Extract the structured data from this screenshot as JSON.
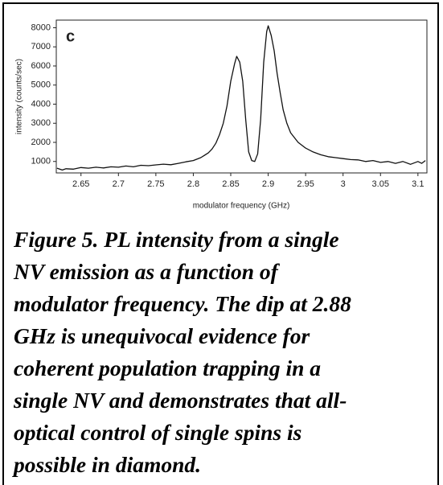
{
  "chart_data": {
    "type": "line",
    "panel_label": "c",
    "x_label": "modulator frequency (GHz)",
    "y_label": "intensity (counts/sec)",
    "xlim": [
      2.617,
      3.112
    ],
    "ylim": [
      400,
      8400
    ],
    "xticks": [
      2.65,
      2.7,
      2.75,
      2.8,
      2.85,
      2.9,
      2.95,
      3,
      3.05,
      3.1
    ],
    "yticks": [
      1000,
      2000,
      3000,
      4000,
      5000,
      6000,
      7000,
      8000
    ],
    "series": [
      {
        "color": "#111111",
        "x": [
          2.618,
          2.625,
          2.63,
          2.64,
          2.65,
          2.66,
          2.67,
          2.68,
          2.69,
          2.7,
          2.71,
          2.72,
          2.73,
          2.74,
          2.75,
          2.76,
          2.77,
          2.78,
          2.79,
          2.8,
          2.81,
          2.82,
          2.825,
          2.83,
          2.835,
          2.84,
          2.845,
          2.85,
          2.855,
          2.858,
          2.862,
          2.866,
          2.87,
          2.874,
          2.878,
          2.882,
          2.886,
          2.89,
          2.894,
          2.898,
          2.9,
          2.904,
          2.908,
          2.912,
          2.916,
          2.92,
          2.925,
          2.93,
          2.94,
          2.95,
          2.96,
          2.97,
          2.98,
          2.99,
          3.0,
          3.01,
          3.02,
          3.03,
          3.04,
          3.05,
          3.06,
          3.07,
          3.08,
          3.09,
          3.1,
          3.105,
          3.11
        ],
        "values": [
          650,
          550,
          620,
          600,
          680,
          650,
          700,
          660,
          720,
          700,
          760,
          720,
          800,
          780,
          820,
          860,
          830,
          900,
          980,
          1050,
          1200,
          1450,
          1650,
          1950,
          2400,
          3000,
          3900,
          5200,
          6100,
          6500,
          6200,
          5200,
          3200,
          1500,
          1050,
          1000,
          1400,
          3200,
          6200,
          7800,
          8100,
          7600,
          6800,
          5600,
          4600,
          3700,
          3000,
          2500,
          2000,
          1700,
          1500,
          1350,
          1250,
          1200,
          1150,
          1100,
          1080,
          1000,
          1050,
          950,
          1000,
          900,
          1000,
          850,
          1000,
          900,
          1050
        ]
      }
    ]
  },
  "caption_lines": [
    "Figure 5. PL intensity from a single",
    "NV emission as a function of",
    "modulator frequency. The dip at 2.88",
    "GHz is unequivocal evidence for",
    "coherent population trapping in a",
    "single NV and demonstrates that all-",
    "optical control of single spins is",
    "possible in diamond."
  ]
}
